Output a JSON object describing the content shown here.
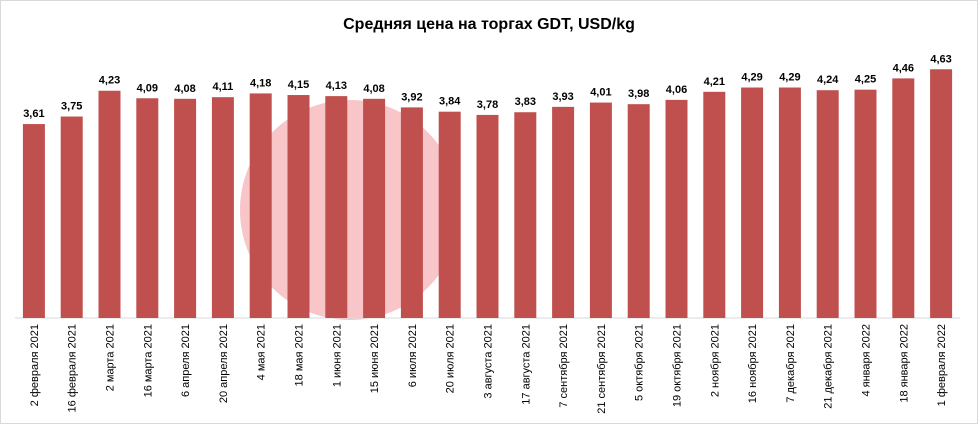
{
  "chart_data": {
    "type": "bar",
    "title": "Средняя цена на торгах GDT, USD/kg",
    "categories": [
      "2 февраля 2021",
      "16 февраля 2021",
      "2 марта 2021",
      "16 марта 2021",
      "6 апреля 2021",
      "20 апреля 2021",
      "4 мая 2021",
      "18 мая 2021",
      "1 июня 2021",
      "15 июня 2021",
      "6 июля 2021",
      "20 июля 2021",
      "3 августа 2021",
      "17 августа 2021",
      "7 сентября 2021",
      "21 сентября 2021",
      "5 октября 2021",
      "19 октября 2021",
      "2 ноября 2021",
      "16 ноября 2021",
      "7 декабря 2021",
      "21 декабря 2021",
      "4 января 2022",
      "18 января 2022",
      "1 февраля 2022"
    ],
    "values": [
      3.61,
      3.75,
      4.23,
      4.09,
      4.08,
      4.11,
      4.18,
      4.15,
      4.13,
      4.08,
      3.92,
      3.84,
      3.78,
      3.83,
      3.93,
      4.01,
      3.98,
      4.06,
      4.21,
      4.29,
      4.29,
      4.24,
      4.25,
      4.46,
      4.63
    ],
    "value_labels": [
      "3,61",
      "3,75",
      "4,23",
      "4,09",
      "4,08",
      "4,11",
      "4,18",
      "4,15",
      "4,13",
      "4,08",
      "3,92",
      "3,84",
      "3,78",
      "3,83",
      "3,93",
      "4,01",
      "3,98",
      "4,06",
      "4,21",
      "4,29",
      "4,29",
      "4,24",
      "4,25",
      "4,46",
      "4,63"
    ],
    "color": "#c0504d",
    "ylim": [
      0,
      5.1
    ]
  }
}
